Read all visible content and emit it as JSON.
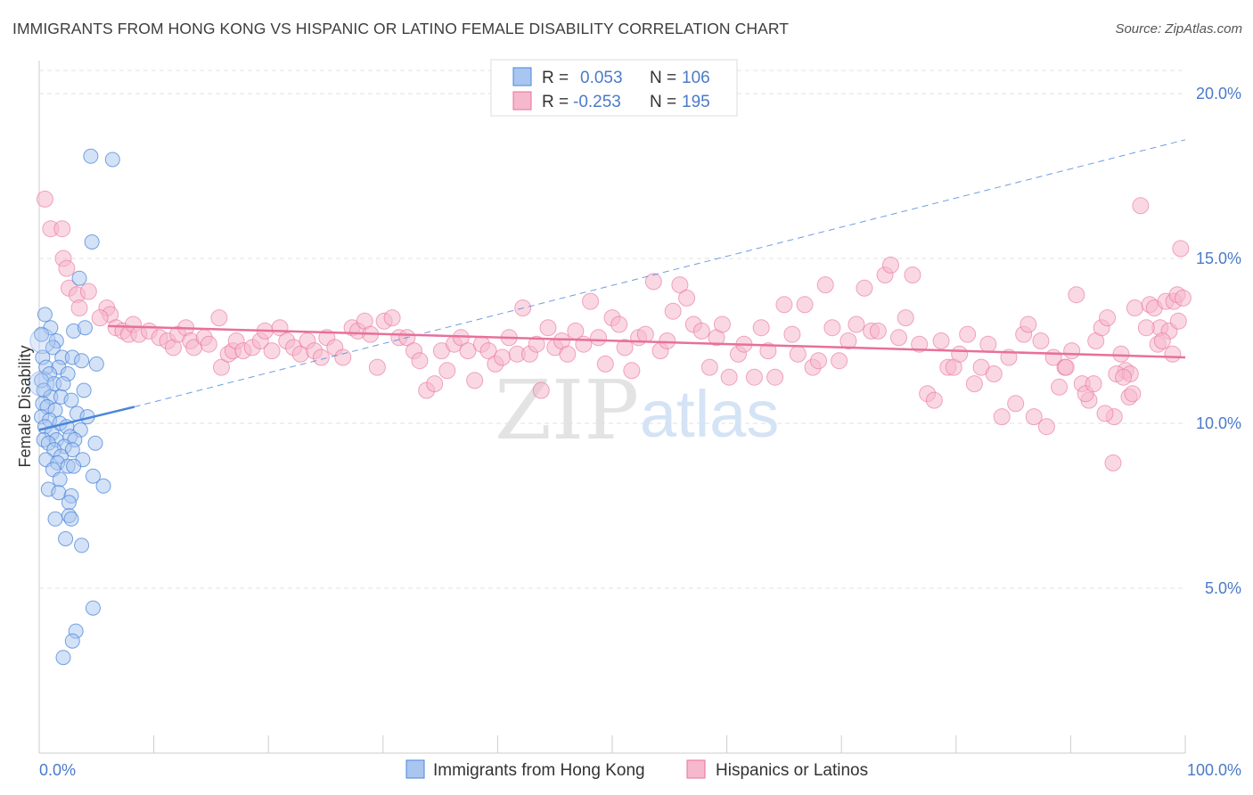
{
  "header": {
    "title": "IMMIGRANTS FROM HONG KONG VS HISPANIC OR LATINO FEMALE DISABILITY CORRELATION CHART",
    "source": "Source: ZipAtlas.com"
  },
  "watermark": {
    "zip": "ZIP",
    "atlas": "atlas"
  },
  "colors": {
    "blue": "#4a86d9",
    "blue_fill": "#a9c6f0",
    "pink": "#e8709a",
    "pink_fill": "#f6b8cc",
    "grid": "#e2e2e2",
    "tick_text": "#4a7ac9"
  },
  "legend_box": {
    "rows": [
      {
        "r_label": "R =",
        "r_value": "0.053",
        "n_label": "N =",
        "n_value": "106"
      },
      {
        "r_label": "R =",
        "r_value": "-0.253",
        "n_label": "N =",
        "n_value": "195"
      }
    ]
  },
  "bottom_legend": {
    "items": [
      "Immigrants from Hong Kong",
      "Hispanics or Latinos"
    ]
  },
  "chart_data": {
    "type": "scatter",
    "title": "IMMIGRANTS FROM HONG KONG VS HISPANIC OR LATINO FEMALE DISABILITY CORRELATION CHART",
    "xlabel": "",
    "ylabel": "Female Disability",
    "xlim": [
      0,
      100
    ],
    "ylim": [
      0,
      21
    ],
    "x_tick_labels": [
      "0.0%",
      "100.0%"
    ],
    "y_ticks": [
      5,
      10,
      15,
      20
    ],
    "y_tick_labels": [
      "5.0%",
      "10.0%",
      "15.0%",
      "20.0%"
    ],
    "grid": true,
    "legend_placement": "top-center",
    "series": [
      {
        "name": "Immigrants from Hong Kong",
        "color": "#4a86d9",
        "R": 0.053,
        "N": 106,
        "trend_solid": [
          [
            0,
            9.8
          ],
          [
            8.3,
            10.5
          ]
        ],
        "trend_dashed": [
          [
            8.3,
            10.5
          ],
          [
            100,
            18.6
          ]
        ],
        "points": [
          [
            4.5,
            18.1
          ],
          [
            6.4,
            18.0
          ],
          [
            4.6,
            15.5
          ],
          [
            3.5,
            14.4
          ],
          [
            0.5,
            13.3
          ],
          [
            1.0,
            12.9
          ],
          [
            3.0,
            12.8
          ],
          [
            4.0,
            12.9
          ],
          [
            0.2,
            12.7
          ],
          [
            1.5,
            12.5
          ],
          [
            1.2,
            12.3
          ],
          [
            0.3,
            12.0
          ],
          [
            2.0,
            12.0
          ],
          [
            2.9,
            12.0
          ],
          [
            3.7,
            11.9
          ],
          [
            5.0,
            11.8
          ],
          [
            0.6,
            11.7
          ],
          [
            1.7,
            11.7
          ],
          [
            0.9,
            11.5
          ],
          [
            2.5,
            11.5
          ],
          [
            0.2,
            11.3
          ],
          [
            1.3,
            11.2
          ],
          [
            2.1,
            11.2
          ],
          [
            3.9,
            11.0
          ],
          [
            0.4,
            11.0
          ],
          [
            1.0,
            10.8
          ],
          [
            1.9,
            10.8
          ],
          [
            2.8,
            10.7
          ],
          [
            0.3,
            10.6
          ],
          [
            0.7,
            10.5
          ],
          [
            1.4,
            10.4
          ],
          [
            3.3,
            10.3
          ],
          [
            4.2,
            10.2
          ],
          [
            0.2,
            10.2
          ],
          [
            0.9,
            10.1
          ],
          [
            1.8,
            10.0
          ],
          [
            2.4,
            9.9
          ],
          [
            0.5,
            9.9
          ],
          [
            3.6,
            9.8
          ],
          [
            1.1,
            9.7
          ],
          [
            2.7,
            9.6
          ],
          [
            0.4,
            9.5
          ],
          [
            1.5,
            9.5
          ],
          [
            3.1,
            9.5
          ],
          [
            4.9,
            9.4
          ],
          [
            0.8,
            9.4
          ],
          [
            2.2,
            9.3
          ],
          [
            1.3,
            9.2
          ],
          [
            2.9,
            9.2
          ],
          [
            1.9,
            9.0
          ],
          [
            0.6,
            8.9
          ],
          [
            3.8,
            8.9
          ],
          [
            1.6,
            8.8
          ],
          [
            2.5,
            8.7
          ],
          [
            1.2,
            8.6
          ],
          [
            3.0,
            8.7
          ],
          [
            1.8,
            8.3
          ],
          [
            4.7,
            8.4
          ],
          [
            0.8,
            8.0
          ],
          [
            1.7,
            7.9
          ],
          [
            2.8,
            7.8
          ],
          [
            5.6,
            8.1
          ],
          [
            2.6,
            7.6
          ],
          [
            2.6,
            7.2
          ],
          [
            2.8,
            7.1
          ],
          [
            1.4,
            7.1
          ],
          [
            2.3,
            6.5
          ],
          [
            3.7,
            6.3
          ],
          [
            4.7,
            4.4
          ],
          [
            3.2,
            3.7
          ],
          [
            2.9,
            3.4
          ],
          [
            2.1,
            2.9
          ]
        ]
      },
      {
        "name": "Hispanics or Latinos",
        "color": "#e8709a",
        "R": -0.253,
        "N": 195,
        "trend": [
          [
            6.0,
            12.95
          ],
          [
            100,
            12.0
          ]
        ],
        "points": [
          [
            0.5,
            16.8
          ],
          [
            1.0,
            15.9
          ],
          [
            2.0,
            15.9
          ],
          [
            2.1,
            15.0
          ],
          [
            2.4,
            14.7
          ],
          [
            2.6,
            14.1
          ],
          [
            3.3,
            13.9
          ],
          [
            4.3,
            14.0
          ],
          [
            3.5,
            13.5
          ],
          [
            5.9,
            13.5
          ],
          [
            6.2,
            13.3
          ],
          [
            5.3,
            13.2
          ],
          [
            6.7,
            12.9
          ],
          [
            7.3,
            12.8
          ],
          [
            7.8,
            12.7
          ],
          [
            8.2,
            13.0
          ],
          [
            8.7,
            12.7
          ],
          [
            9.6,
            12.8
          ],
          [
            10.5,
            12.6
          ],
          [
            11.2,
            12.5
          ],
          [
            11.7,
            12.3
          ],
          [
            12.1,
            12.7
          ],
          [
            12.8,
            12.9
          ],
          [
            13.2,
            12.5
          ],
          [
            13.5,
            12.3
          ],
          [
            14.4,
            12.6
          ],
          [
            14.8,
            12.4
          ],
          [
            15.7,
            13.2
          ],
          [
            15.9,
            11.7
          ],
          [
            16.5,
            12.1
          ],
          [
            16.9,
            12.2
          ],
          [
            17.2,
            12.5
          ],
          [
            17.8,
            12.2
          ],
          [
            18.6,
            12.3
          ],
          [
            19.3,
            12.5
          ],
          [
            19.7,
            12.8
          ],
          [
            20.3,
            12.2
          ],
          [
            21.0,
            12.9
          ],
          [
            21.6,
            12.5
          ],
          [
            22.2,
            12.3
          ],
          [
            22.8,
            12.1
          ],
          [
            23.4,
            12.5
          ],
          [
            24.0,
            12.2
          ],
          [
            24.6,
            12.0
          ],
          [
            25.1,
            12.6
          ],
          [
            25.8,
            12.3
          ],
          [
            26.5,
            12.0
          ],
          [
            27.3,
            12.9
          ],
          [
            27.8,
            12.8
          ],
          [
            28.4,
            13.1
          ],
          [
            28.9,
            12.7
          ],
          [
            29.5,
            11.7
          ],
          [
            30.1,
            13.1
          ],
          [
            30.8,
            13.2
          ],
          [
            31.4,
            12.6
          ],
          [
            32.1,
            12.6
          ],
          [
            32.7,
            12.2
          ],
          [
            33.2,
            11.9
          ],
          [
            33.8,
            11.0
          ],
          [
            34.5,
            11.2
          ],
          [
            35.1,
            12.2
          ],
          [
            35.6,
            11.6
          ],
          [
            36.2,
            12.4
          ],
          [
            36.8,
            12.6
          ],
          [
            37.4,
            12.2
          ],
          [
            38.0,
            11.3
          ],
          [
            38.6,
            12.4
          ],
          [
            39.2,
            12.2
          ],
          [
            39.8,
            11.8
          ],
          [
            40.4,
            12.0
          ],
          [
            41.0,
            12.6
          ],
          [
            41.7,
            12.1
          ],
          [
            42.2,
            13.5
          ],
          [
            42.8,
            12.1
          ],
          [
            43.4,
            12.4
          ],
          [
            43.8,
            11.0
          ],
          [
            44.4,
            12.9
          ],
          [
            45.0,
            12.3
          ],
          [
            45.6,
            12.5
          ],
          [
            46.1,
            12.1
          ],
          [
            46.8,
            12.8
          ],
          [
            47.5,
            12.4
          ],
          [
            48.1,
            13.7
          ],
          [
            48.8,
            12.6
          ],
          [
            49.4,
            11.8
          ],
          [
            50.0,
            13.2
          ],
          [
            50.6,
            13.0
          ],
          [
            51.1,
            12.3
          ],
          [
            51.7,
            11.6
          ],
          [
            52.3,
            12.6
          ],
          [
            52.9,
            12.7
          ],
          [
            53.6,
            14.3
          ],
          [
            54.2,
            12.2
          ],
          [
            54.8,
            12.5
          ],
          [
            55.3,
            13.4
          ],
          [
            55.9,
            14.2
          ],
          [
            56.5,
            13.8
          ],
          [
            57.1,
            13.0
          ],
          [
            57.8,
            12.8
          ],
          [
            58.5,
            11.7
          ],
          [
            59.1,
            12.6
          ],
          [
            59.6,
            13.0
          ],
          [
            60.2,
            11.4
          ],
          [
            61.0,
            12.1
          ],
          [
            61.5,
            12.4
          ],
          [
            62.4,
            11.4
          ],
          [
            63.0,
            12.9
          ],
          [
            63.6,
            12.2
          ],
          [
            64.2,
            11.4
          ],
          [
            65.0,
            13.6
          ],
          [
            65.7,
            12.7
          ],
          [
            66.2,
            12.1
          ],
          [
            66.8,
            13.6
          ],
          [
            67.5,
            11.7
          ],
          [
            68.0,
            11.9
          ],
          [
            68.6,
            14.2
          ],
          [
            69.2,
            12.9
          ],
          [
            69.8,
            11.9
          ],
          [
            70.6,
            12.5
          ],
          [
            71.3,
            13.0
          ],
          [
            72.0,
            14.1
          ],
          [
            72.6,
            12.8
          ],
          [
            73.2,
            12.8
          ],
          [
            73.8,
            14.5
          ],
          [
            74.3,
            14.8
          ],
          [
            75.0,
            12.6
          ],
          [
            75.6,
            13.2
          ],
          [
            76.2,
            14.5
          ],
          [
            76.8,
            12.4
          ],
          [
            77.5,
            10.9
          ],
          [
            78.1,
            10.7
          ],
          [
            78.7,
            12.5
          ],
          [
            79.3,
            11.7
          ],
          [
            79.8,
            11.7
          ],
          [
            80.3,
            12.1
          ],
          [
            81.0,
            12.7
          ],
          [
            81.6,
            11.2
          ],
          [
            82.2,
            11.7
          ],
          [
            82.8,
            12.4
          ],
          [
            83.3,
            11.5
          ],
          [
            84.0,
            10.2
          ],
          [
            84.6,
            12.0
          ],
          [
            85.2,
            10.6
          ],
          [
            85.9,
            12.7
          ],
          [
            86.3,
            13.0
          ],
          [
            86.8,
            10.2
          ],
          [
            87.4,
            12.5
          ],
          [
            87.9,
            9.9
          ],
          [
            88.5,
            12.0
          ],
          [
            89.0,
            11.1
          ],
          [
            89.5,
            11.7
          ],
          [
            90.1,
            12.2
          ],
          [
            90.5,
            13.9
          ],
          [
            91.0,
            11.2
          ],
          [
            91.6,
            10.7
          ],
          [
            92.2,
            12.5
          ],
          [
            92.7,
            12.9
          ],
          [
            93.2,
            13.2
          ],
          [
            93.8,
            10.2
          ],
          [
            94.4,
            12.1
          ],
          [
            94.8,
            11.6
          ],
          [
            95.1,
            10.8
          ],
          [
            95.6,
            13.5
          ],
          [
            96.1,
            16.6
          ],
          [
            96.9,
            13.6
          ],
          [
            97.3,
            13.5
          ],
          [
            97.8,
            12.9
          ],
          [
            98.3,
            13.7
          ],
          [
            98.6,
            12.8
          ],
          [
            99.0,
            13.7
          ],
          [
            99.3,
            13.9
          ],
          [
            99.6,
            15.3
          ],
          [
            93.7,
            8.8
          ],
          [
            89.6,
            11.7
          ],
          [
            91.3,
            10.9
          ],
          [
            93.0,
            10.3
          ],
          [
            92.0,
            11.2
          ],
          [
            94.0,
            11.5
          ],
          [
            95.2,
            11.5
          ],
          [
            96.6,
            12.9
          ],
          [
            97.6,
            12.4
          ],
          [
            98.0,
            12.5
          ],
          [
            98.9,
            12.1
          ],
          [
            99.4,
            13.1
          ],
          [
            99.8,
            13.8
          ],
          [
            95.4,
            10.9
          ],
          [
            94.6,
            11.4
          ]
        ]
      }
    ]
  }
}
